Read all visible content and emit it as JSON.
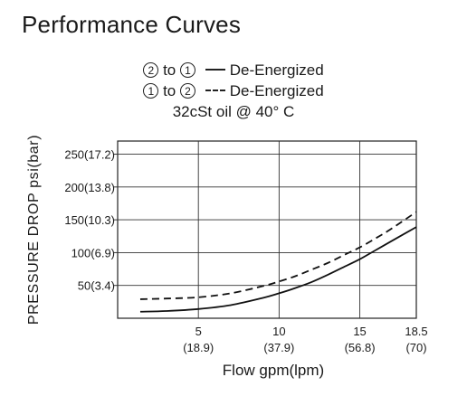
{
  "title": "Performance Curves",
  "legend": {
    "rows": [
      {
        "from": "2",
        "to_word": "to",
        "to": "1",
        "style": "solid",
        "label": "De-Energized"
      },
      {
        "from": "1",
        "to_word": "to",
        "to": "2",
        "style": "dashed",
        "label": "De-Energized"
      }
    ],
    "condition": "32cSt oil @ 40° C"
  },
  "chart_data": {
    "type": "line",
    "title": "Performance Curves",
    "xlabel": "Flow gpm(lpm)",
    "ylabel": "PRESSURE DROP psi(bar)",
    "xlim": [
      0,
      18.5
    ],
    "ylim": [
      0,
      270
    ],
    "grid": true,
    "x_ticks": [
      {
        "value": 5,
        "label": "5",
        "sublabel": "(18.9)"
      },
      {
        "value": 10,
        "label": "10",
        "sublabel": "(37.9)"
      },
      {
        "value": 15,
        "label": "15",
        "sublabel": "(56.8)"
      },
      {
        "value": 18.5,
        "label": "18.5",
        "sublabel": "(70)"
      }
    ],
    "y_ticks": [
      {
        "value": 50,
        "label": "50(3.4)"
      },
      {
        "value": 100,
        "label": "100(6.9)"
      },
      {
        "value": 150,
        "label": "150(10.3)"
      },
      {
        "value": 200,
        "label": "200(13.8)"
      },
      {
        "value": 250,
        "label": "250(17.2)"
      }
    ],
    "series": [
      {
        "style": "solid",
        "color": "#111111",
        "x": [
          1.4,
          3,
          5,
          7,
          9,
          10,
          11,
          12,
          13,
          14,
          15,
          16,
          17,
          18.5
        ],
        "y": [
          10,
          11,
          14,
          20,
          31,
          38,
          46,
          55,
          66,
          78,
          90,
          104,
          118,
          139
        ]
      },
      {
        "style": "dashed",
        "color": "#111111",
        "x": [
          1.4,
          3,
          5,
          7,
          9,
          10,
          11,
          12,
          13,
          14,
          15,
          16,
          17,
          18.5
        ],
        "y": [
          29,
          30,
          32,
          38,
          49,
          56,
          64,
          74,
          84,
          96,
          108,
          122,
          137,
          162
        ]
      }
    ]
  }
}
